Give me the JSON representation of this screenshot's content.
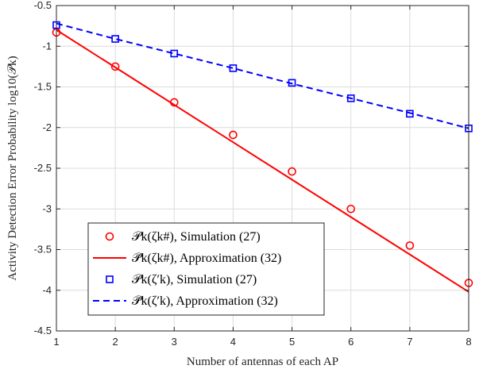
{
  "chart_data": {
    "type": "line",
    "xlabel": "Number of antennas of each AP",
    "ylabel": "Activity Detection Error Probability log10(𝒫k)",
    "xlim": [
      1,
      8
    ],
    "ylim": [
      -4.5,
      -0.5
    ],
    "xticks": [
      "1",
      "2",
      "3",
      "4",
      "5",
      "6",
      "7",
      "8"
    ],
    "yticks": [
      "-0.5",
      "-1",
      "-1.5",
      "-2",
      "-2.5",
      "-3",
      "-3.5",
      "-4",
      "-4.5"
    ],
    "grid": true,
    "legend_position": "bottom-left",
    "x": [
      1,
      2,
      3,
      4,
      5,
      6,
      7,
      8
    ],
    "series": [
      {
        "name": "𝒫k(ζk#), Simulation (27)",
        "style": "markers",
        "marker": "circle",
        "color": "#ff0000",
        "values": [
          -0.83,
          -1.25,
          -1.69,
          -2.09,
          -2.54,
          -3.0,
          -3.45,
          -3.91
        ]
      },
      {
        "name": "𝒫̃k(ζk#), Approximation (32)",
        "style": "solid",
        "color": "#ff0000",
        "values": [
          -0.8,
          -1.26,
          -1.72,
          -2.18,
          -2.64,
          -3.1,
          -3.56,
          -4.02
        ]
      },
      {
        "name": "𝒫k(ζ′k), Simulation (27)",
        "style": "markers",
        "marker": "square",
        "color": "#0000ff",
        "values": [
          -0.74,
          -0.91,
          -1.09,
          -1.27,
          -1.45,
          -1.64,
          -1.83,
          -2.01
        ]
      },
      {
        "name": "𝒫̃k(ζ′k), Approximation (32)",
        "style": "dashed",
        "color": "#0000ff",
        "values": [
          -0.72,
          -0.91,
          -1.09,
          -1.27,
          -1.46,
          -1.64,
          -1.82,
          -2.01
        ]
      }
    ]
  }
}
